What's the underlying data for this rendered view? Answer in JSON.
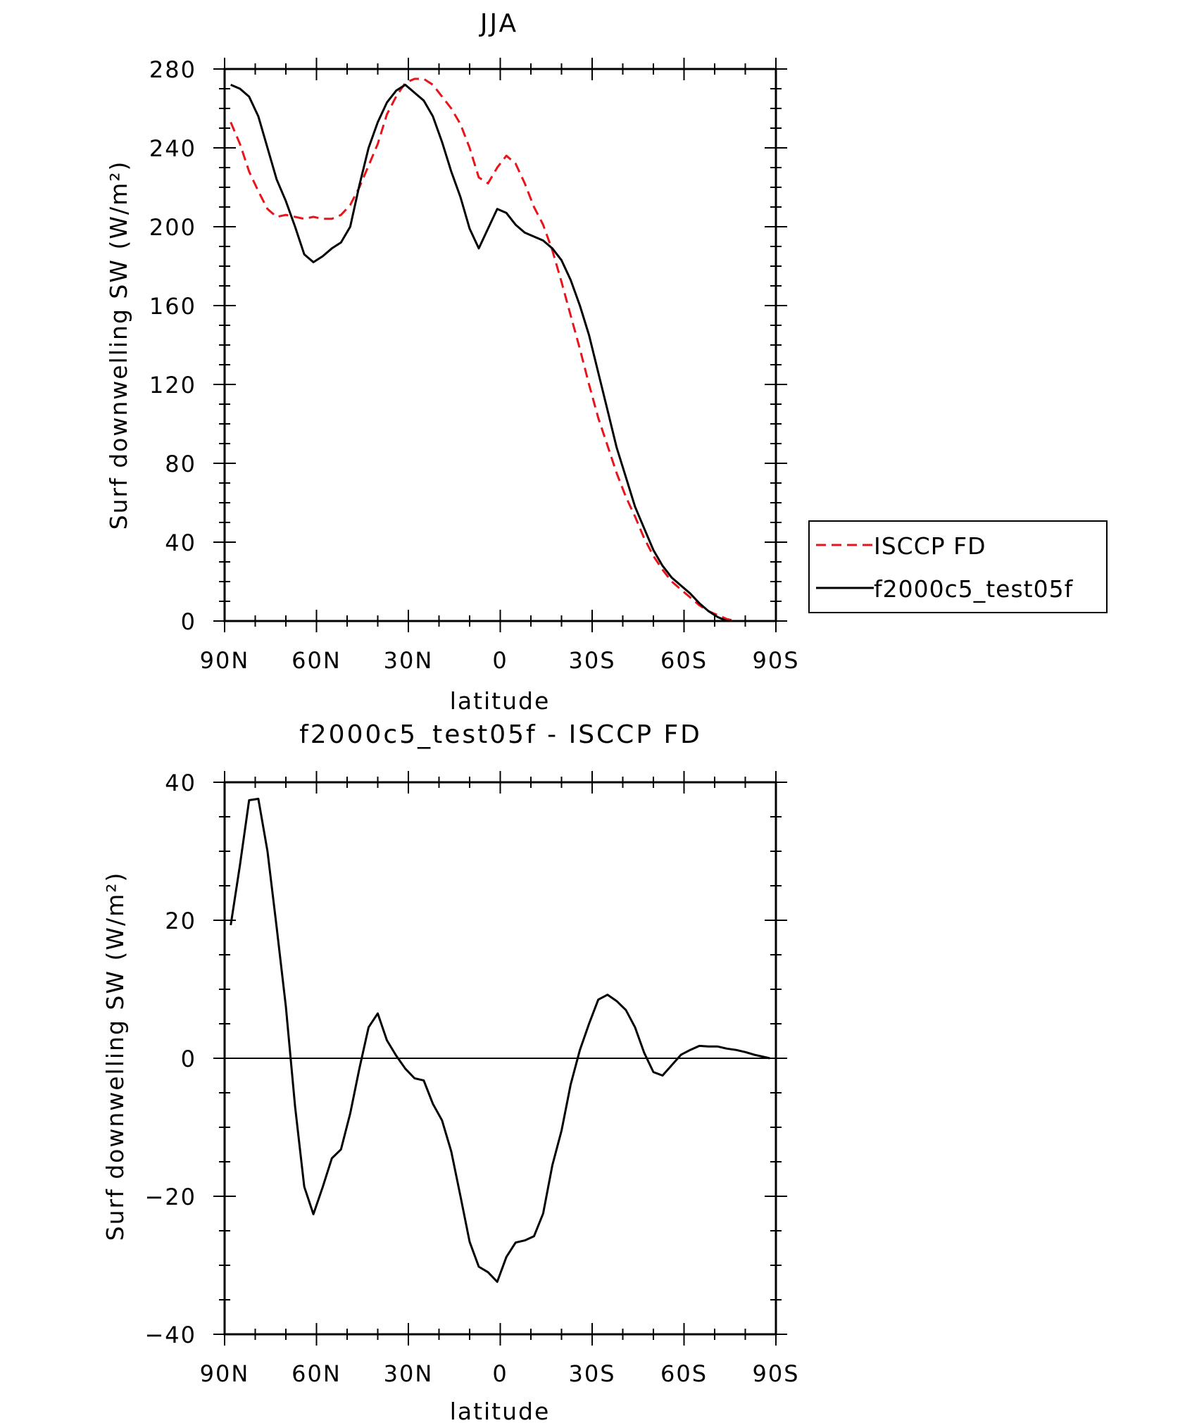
{
  "chart_data": [
    {
      "type": "line",
      "title": "JJA",
      "xlabel": "latitude",
      "ylabel": "Surf downwelling SW (W/m²)",
      "xlim": [
        90,
        -90
      ],
      "ylim": [
        0,
        280
      ],
      "xticks": [
        90,
        60,
        30,
        0,
        -30,
        -60,
        -90
      ],
      "xtick_labels": [
        "90N",
        "60N",
        "30N",
        "0",
        "30S",
        "60S",
        "90S"
      ],
      "yticks": [
        0,
        40,
        80,
        120,
        160,
        200,
        240,
        280
      ],
      "ytick_labels": [
        "0",
        "40",
        "80",
        "120",
        "160",
        "200",
        "240",
        "280"
      ],
      "grid": false,
      "legend_position": "right-outside",
      "series": [
        {
          "name": "ISCCP FD",
          "color": "#e8141b",
          "dash": "dashed",
          "x": [
            88,
            85,
            82,
            79,
            76,
            73,
            70,
            67,
            64,
            61,
            58,
            55,
            52,
            49,
            46,
            43,
            40,
            37,
            34,
            31,
            28,
            25,
            22,
            19,
            16,
            13,
            10,
            7,
            4,
            1,
            -2,
            -5,
            -8,
            -11,
            -14,
            -17,
            -20,
            -23,
            -26,
            -29,
            -32,
            -35,
            -38,
            -41,
            -44,
            -47,
            -50,
            -53,
            -56,
            -59,
            -62,
            -65,
            -68,
            -71,
            -74,
            -77,
            -80,
            -83,
            -86,
            -88
          ],
          "y": [
            253,
            242,
            228,
            218,
            209,
            205,
            206,
            205,
            204,
            205,
            204,
            204,
            206,
            211,
            220,
            231,
            242,
            257,
            266,
            273,
            275,
            275,
            272,
            266,
            260,
            252,
            240,
            225,
            222,
            230,
            236,
            232,
            222,
            210,
            201,
            188,
            172,
            155,
            138,
            120,
            103,
            89,
            75,
            63,
            53,
            42,
            33,
            26,
            20,
            16,
            12,
            8,
            5,
            3,
            1,
            0,
            0,
            0,
            0,
            0
          ]
        },
        {
          "name": "f2000c5_test05f",
          "color": "#000000",
          "dash": "solid",
          "x": [
            88,
            85,
            82,
            79,
            76,
            73,
            70,
            67,
            64,
            61,
            58,
            55,
            52,
            49,
            46,
            43,
            40,
            37,
            34,
            31,
            28,
            25,
            22,
            19,
            16,
            13,
            10,
            7,
            4,
            1,
            -2,
            -5,
            -8,
            -11,
            -14,
            -17,
            -20,
            -23,
            -26,
            -29,
            -32,
            -35,
            -38,
            -41,
            -44,
            -47,
            -50,
            -53,
            -56,
            -59,
            -62,
            -65,
            -68,
            -71,
            -74,
            -77,
            -80,
            -83,
            -86,
            -88
          ],
          "y": [
            272,
            270,
            266,
            256,
            240,
            224,
            213,
            200,
            186,
            182,
            185,
            189,
            192,
            200,
            221,
            240,
            253,
            263,
            269,
            272,
            268,
            264,
            256,
            243,
            228,
            215,
            199,
            189,
            199,
            209,
            207,
            201,
            197,
            195,
            193,
            189,
            183,
            173,
            160,
            145,
            126,
            107,
            88,
            73,
            58,
            47,
            36,
            28,
            22,
            18,
            14,
            9,
            5,
            2,
            0,
            0,
            0,
            0,
            0,
            0
          ]
        }
      ]
    },
    {
      "type": "line",
      "title": "f2000c5_test05f - ISCCP FD",
      "xlabel": "latitude",
      "ylabel": "Surf downwelling SW (W/m²)",
      "xlim": [
        90,
        -90
      ],
      "ylim": [
        -40,
        40
      ],
      "xticks": [
        90,
        60,
        30,
        0,
        -30,
        -60,
        -90
      ],
      "xtick_labels": [
        "90N",
        "60N",
        "30N",
        "0",
        "30S",
        "60S",
        "90S"
      ],
      "yticks": [
        -40,
        -20,
        0,
        20,
        40
      ],
      "ytick_labels": [
        "−40",
        "−20",
        "0",
        "20",
        "40"
      ],
      "grid": false,
      "series": [
        {
          "color": "#000000",
          "dash": "solid",
          "x": [
            88,
            85,
            82,
            79,
            76,
            73,
            70,
            67,
            64,
            61,
            58,
            55,
            52,
            49,
            46,
            43,
            40,
            37,
            34,
            31,
            28,
            25,
            22,
            19,
            16,
            13,
            10,
            7,
            4,
            1,
            -2,
            -5,
            -8,
            -11,
            -14,
            -17,
            -20,
            -23,
            -26,
            -29,
            -32,
            -35,
            -38,
            -41,
            -44,
            -47,
            -50,
            -53,
            -56,
            -59,
            -62,
            -65,
            -68,
            -71,
            -74,
            -77,
            -80,
            -83,
            -86,
            -88
          ],
          "y": [
            19.3,
            28,
            37.4,
            37.6,
            30,
            19,
            7.5,
            -7,
            -18.6,
            -22.6,
            -18.7,
            -14.5,
            -13.2,
            -8,
            -1.5,
            4.5,
            6.5,
            2.6,
            0.4,
            -1.5,
            -2.9,
            -3.2,
            -6.6,
            -9,
            -13.5,
            -20,
            -26.6,
            -30.2,
            -31,
            -32.4,
            -28.8,
            -26.7,
            -26.4,
            -25.8,
            -22.5,
            -15.5,
            -10.5,
            -3.8,
            1.2,
            5,
            8.5,
            9.2,
            8.3,
            7,
            4.5,
            0.8,
            -2,
            -2.5,
            -1,
            0.5,
            1.2,
            1.8,
            1.7,
            1.7,
            1.4,
            1.2,
            0.9,
            0.5,
            0.2,
            0
          ]
        }
      ]
    }
  ]
}
